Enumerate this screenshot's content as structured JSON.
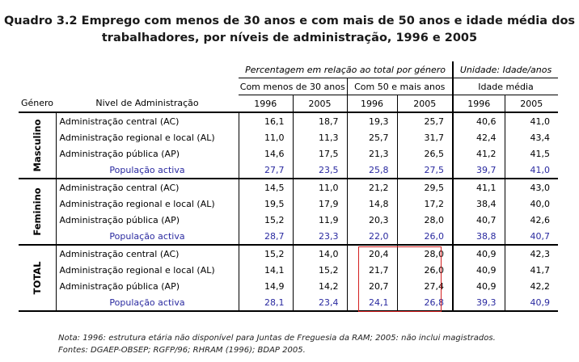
{
  "title": {
    "line1": "Quadro 3.2 Emprego com menos de 30 anos e com mais de 50 anos e idade média dos",
    "line2": "trabalhadores, por níveis de administração, 1996 e 2005"
  },
  "header": {
    "pct_caption": "Percentagem em relação ao total por género",
    "unit_caption": "Unidade: Idade/anos",
    "group_under30": "Com menos de 30 anos",
    "group_over50": "Com 50 e mais anos",
    "group_avg_age": "Idade média",
    "col_genero": "Género",
    "col_nivel": "Nivel de Administração",
    "years": [
      "1996",
      "2005",
      "1996",
      "2005",
      "1996",
      "2005"
    ]
  },
  "groups": [
    {
      "label": "Masculino",
      "rows": [
        {
          "level": "Administração central (AC)",
          "values": [
            "16,1",
            "18,7",
            "19,3",
            "25,7",
            "40,6",
            "41,0"
          ]
        },
        {
          "level": "Administração regional e local (AL)",
          "values": [
            "11,0",
            "11,3",
            "25,7",
            "31,7",
            "42,4",
            "43,4"
          ]
        },
        {
          "level": "Administração pública (AP)",
          "values": [
            "14,6",
            "17,5",
            "21,3",
            "26,5",
            "41,2",
            "41,5"
          ]
        },
        {
          "level": "População activa",
          "values": [
            "27,7",
            "23,5",
            "25,8",
            "27,5",
            "39,7",
            "41,0"
          ]
        }
      ]
    },
    {
      "label": "Feminino",
      "rows": [
        {
          "level": "Administração central (AC)",
          "values": [
            "14,5",
            "11,0",
            "21,2",
            "29,5",
            "41,1",
            "43,0"
          ]
        },
        {
          "level": "Administração regional e local (AL)",
          "values": [
            "19,5",
            "17,9",
            "14,8",
            "17,2",
            "38,4",
            "40,0"
          ]
        },
        {
          "level": "Administração pública (AP)",
          "values": [
            "15,2",
            "11,9",
            "20,3",
            "28,0",
            "40,7",
            "42,6"
          ]
        },
        {
          "level": "População activa",
          "values": [
            "28,7",
            "23,3",
            "22,0",
            "26,0",
            "38,8",
            "40,7"
          ]
        }
      ]
    },
    {
      "label": "TOTAL",
      "rows": [
        {
          "level": "Administração central (AC)",
          "values": [
            "15,2",
            "14,0",
            "20,4",
            "28,0",
            "40,9",
            "42,3"
          ]
        },
        {
          "level": "Administração regional e local (AL)",
          "values": [
            "14,1",
            "15,2",
            "21,7",
            "26,0",
            "40,9",
            "41,7"
          ]
        },
        {
          "level": "Administração pública (AP)",
          "values": [
            "14,9",
            "14,2",
            "20,7",
            "27,4",
            "40,9",
            "42,2"
          ]
        },
        {
          "level": "População activa",
          "values": [
            "28,1",
            "23,4",
            "24,1",
            "26,8",
            "39,3",
            "40,9"
          ]
        }
      ]
    }
  ],
  "notes": {
    "line1": "Nota: 1996: estrutura etária não disponível para Juntas de Freguesia da RAM; 2005: não inclui magistrados.",
    "line2": "Fontes: DGAEP-OBSEP; RGFP/96; RHRAM (1996); BDAP 2005."
  },
  "colors": {
    "population_row": "#2a2aa0",
    "highlight_box": "#d42020"
  }
}
